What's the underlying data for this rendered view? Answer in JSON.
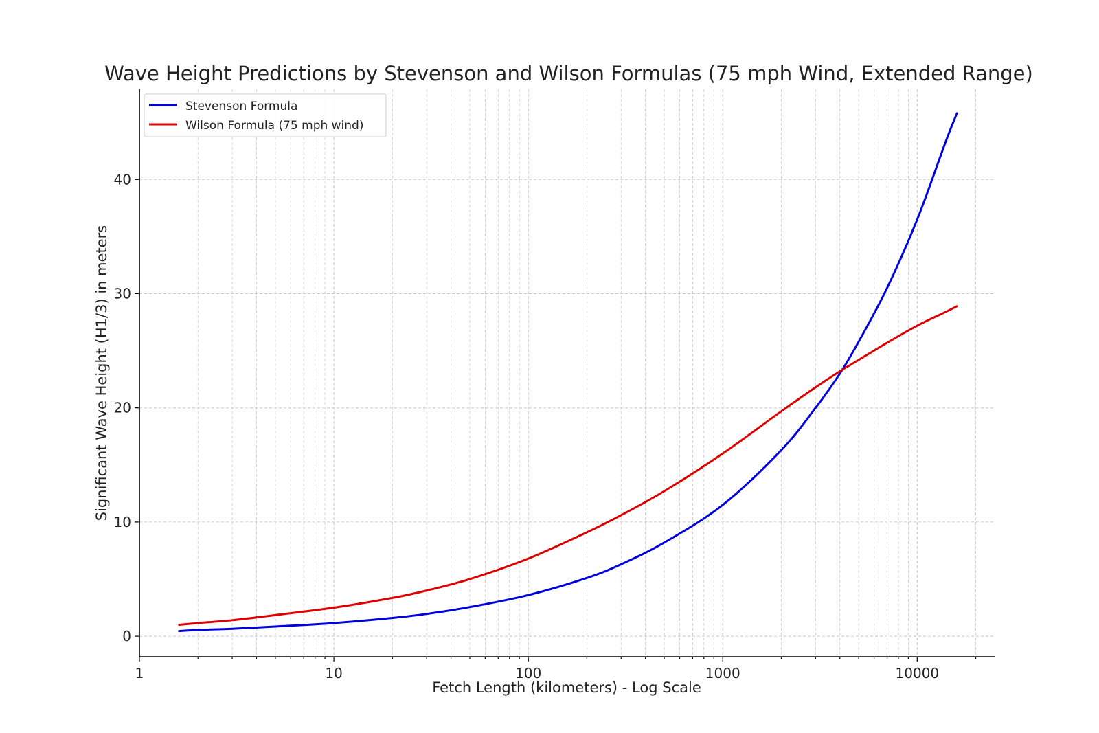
{
  "chart_data": {
    "type": "line",
    "title": "Wave Height Predictions by Stevenson and Wilson Formulas (75 mph Wind, Extended Range)",
    "xlabel": "Fetch Length (kilometers) - Log Scale",
    "ylabel": "Significant Wave Height (H1/3) in meters",
    "xscale": "log",
    "xlim": [
      1,
      25000
    ],
    "ylim": [
      -1.8,
      47.9
    ],
    "x_ticks": [
      1,
      10,
      100,
      1000,
      10000
    ],
    "x_tick_labels": [
      "1",
      "10",
      "100",
      "1000",
      "10000"
    ],
    "y_ticks": [
      0,
      10,
      20,
      30,
      40
    ],
    "y_tick_labels": [
      "0",
      "10",
      "20",
      "30",
      "40"
    ],
    "grid": true,
    "legend_position": "top-left",
    "x": [
      1.6,
      2,
      3,
      5,
      10,
      20,
      30,
      50,
      100,
      200,
      300,
      500,
      1000,
      2000,
      3000,
      4000,
      5000,
      7000,
      10000,
      14000,
      16000
    ],
    "series": [
      {
        "name": "Stevenson Formula",
        "color": "#0000dd",
        "values": [
          0.45,
          0.55,
          0.65,
          0.85,
          1.15,
          1.6,
          1.95,
          2.55,
          3.6,
          5.1,
          6.3,
          8.2,
          11.5,
          16.3,
          20.0,
          23.0,
          25.8,
          30.5,
          36.5,
          43.3,
          45.8
        ]
      },
      {
        "name": "Wilson Formula (75 mph wind)",
        "color": "#dd0000",
        "values": [
          1.0,
          1.15,
          1.4,
          1.85,
          2.5,
          3.35,
          4.0,
          5.0,
          6.8,
          9.1,
          10.6,
          12.7,
          16.0,
          19.7,
          21.8,
          23.2,
          24.2,
          25.7,
          27.2,
          28.4,
          28.9
        ]
      }
    ]
  }
}
